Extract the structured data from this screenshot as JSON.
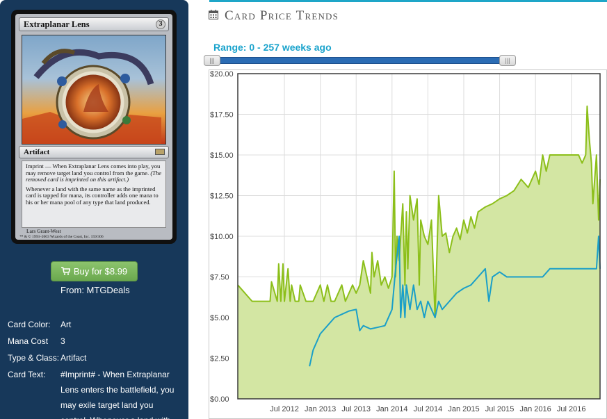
{
  "card": {
    "name": "Extraplanar Lens",
    "cost": "3",
    "type_line": "Artifact",
    "oracle_p1": "Imprint — When Extraplanar Lens comes into play, you may remove target land you control from the game.",
    "oracle_p1_reminder": "(The removed card is imprinted on this artifact.)",
    "oracle_p2": "Whenever a land with the same name as the imprinted card is tapped for mana, its controller adds one mana to his or her mana pool of any type that land produced.",
    "artist": "Lars Grant-West",
    "copyright": "™ & © 1993–2003 Wizards of the Coast, Inc. 159/306"
  },
  "buy": {
    "label": "Buy for $8.99",
    "from": "From: MTGDeals"
  },
  "details": [
    {
      "label": "Card Color:",
      "value": "Art"
    },
    {
      "label": "Mana Cost",
      "value": "3"
    },
    {
      "label": "Type & Class:",
      "value": "Artifact"
    },
    {
      "label": "Card Text:",
      "value": "#Imprint# - When Extraplanar Lens enters the battlefield, you may exile target land you control. Whenever a land with"
    }
  ],
  "section": {
    "title": "Card Price Trends"
  },
  "range": {
    "label": "Range: 0 - 257 weeks ago",
    "handle_glyph": "|||"
  },
  "colors": {
    "sidebar": "#17385a",
    "accent": "#1aa3cc",
    "buy_button": "#78b35a",
    "series_a": "#8cbf1a",
    "series_a_fill": "#d3e6a3",
    "series_b": "#1a9fc8"
  },
  "chart_data": {
    "type": "area",
    "x_tick_labels": [
      "Jul 2012",
      "Jan 2013",
      "Jul 2013",
      "Jan 2014",
      "Jul 2014",
      "Jan 2015",
      "Jul 2015",
      "Jan 2016",
      "Jul 2016"
    ],
    "x_range": [
      2011.85,
      2016.9
    ],
    "ylim": [
      0,
      20
    ],
    "y_tick_labels": [
      "$0.00",
      "$2.50",
      "$5.00",
      "$7.50",
      "$10.00",
      "$12.50",
      "$15.00",
      "$17.50",
      "$20.00"
    ],
    "y_ticks": [
      0,
      2.5,
      5,
      7.5,
      10,
      12.5,
      15,
      17.5,
      20
    ],
    "grid": true,
    "series": [
      {
        "id": "series_a",
        "x": [
          2011.85,
          2012.05,
          2012.15,
          2012.3,
          2012.32,
          2012.4,
          2012.42,
          2012.45,
          2012.48,
          2012.5,
          2012.55,
          2012.58,
          2012.6,
          2012.65,
          2012.7,
          2012.72,
          2012.8,
          2012.9,
          2013.0,
          2013.05,
          2013.1,
          2013.15,
          2013.2,
          2013.3,
          2013.35,
          2013.4,
          2013.45,
          2013.5,
          2013.55,
          2013.6,
          2013.7,
          2013.72,
          2013.75,
          2013.8,
          2013.85,
          2013.9,
          2013.95,
          2014.0,
          2014.03,
          2014.05,
          2014.07,
          2014.1,
          2014.15,
          2014.18,
          2014.2,
          2014.22,
          2014.25,
          2014.3,
          2014.35,
          2014.38,
          2014.4,
          2014.45,
          2014.5,
          2014.55,
          2014.6,
          2014.65,
          2014.7,
          2014.75,
          2014.8,
          2014.85,
          2014.9,
          2014.95,
          2015.0,
          2015.05,
          2015.1,
          2015.15,
          2015.2,
          2015.3,
          2015.4,
          2015.5,
          2015.6,
          2015.7,
          2015.8,
          2015.9,
          2016.0,
          2016.05,
          2016.1,
          2016.15,
          2016.2,
          2016.3,
          2016.4,
          2016.5,
          2016.6,
          2016.65,
          2016.7,
          2016.72,
          2016.75,
          2016.78,
          2016.8,
          2016.85,
          2016.88,
          2016.9
        ],
        "y": [
          7.0,
          6.0,
          6.0,
          6.0,
          7.2,
          6.0,
          8.3,
          6.0,
          8.3,
          6.0,
          8.0,
          6.0,
          7.0,
          6.0,
          6.0,
          7.0,
          6.0,
          6.0,
          7.0,
          6.0,
          7.0,
          6.0,
          6.0,
          7.0,
          6.0,
          6.5,
          7.0,
          6.5,
          7.0,
          8.5,
          6.5,
          9.0,
          7.5,
          8.5,
          7.0,
          7.5,
          6.8,
          7.5,
          14.0,
          7.5,
          10.0,
          8.5,
          12.0,
          7.0,
          11.5,
          8.0,
          12.5,
          11.0,
          12.3,
          7.0,
          11.0,
          10.0,
          9.5,
          11.0,
          5.0,
          12.5,
          10.0,
          10.2,
          9.0,
          10.0,
          10.5,
          9.8,
          11.0,
          10.2,
          11.2,
          10.5,
          11.5,
          11.8,
          12.0,
          12.3,
          12.5,
          12.8,
          13.5,
          13.0,
          14.0,
          13.2,
          15.0,
          14.0,
          15.0,
          15.0,
          15.0,
          15.0,
          15.0,
          14.5,
          15.0,
          18.0,
          16.0,
          14.5,
          12.0,
          15.0,
          11.0,
          13.5
        ]
      },
      {
        "id": "series_b",
        "x": [
          2012.85,
          2012.9,
          2012.95,
          2013.0,
          2013.1,
          2013.2,
          2013.3,
          2013.4,
          2013.5,
          2013.55,
          2013.6,
          2013.7,
          2013.8,
          2013.9,
          2014.0,
          2014.05,
          2014.1,
          2014.12,
          2014.15,
          2014.18,
          2014.2,
          2014.25,
          2014.3,
          2014.35,
          2014.4,
          2014.45,
          2014.5,
          2014.55,
          2014.6,
          2014.65,
          2014.7,
          2014.8,
          2014.9,
          2015.0,
          2015.1,
          2015.2,
          2015.3,
          2015.35,
          2015.4,
          2015.5,
          2015.6,
          2015.7,
          2015.8,
          2015.9,
          2016.0,
          2016.1,
          2016.2,
          2016.3,
          2016.5,
          2016.7,
          2016.8,
          2016.85,
          2016.88,
          2016.9
        ],
        "y": [
          2.0,
          3.0,
          3.5,
          4.0,
          4.5,
          5.0,
          5.2,
          5.4,
          5.5,
          4.2,
          4.5,
          4.3,
          4.4,
          4.5,
          5.5,
          8.0,
          10.0,
          5.0,
          7.0,
          5.0,
          7.0,
          5.5,
          7.0,
          5.5,
          6.0,
          5.0,
          6.0,
          5.5,
          5.0,
          6.0,
          5.5,
          6.0,
          6.5,
          6.8,
          7.0,
          7.5,
          8.0,
          6.0,
          7.5,
          7.8,
          7.5,
          7.5,
          7.5,
          7.5,
          7.5,
          7.5,
          8.0,
          8.0,
          8.0,
          8.0,
          8.0,
          8.0,
          10.0,
          8.0
        ]
      }
    ]
  }
}
